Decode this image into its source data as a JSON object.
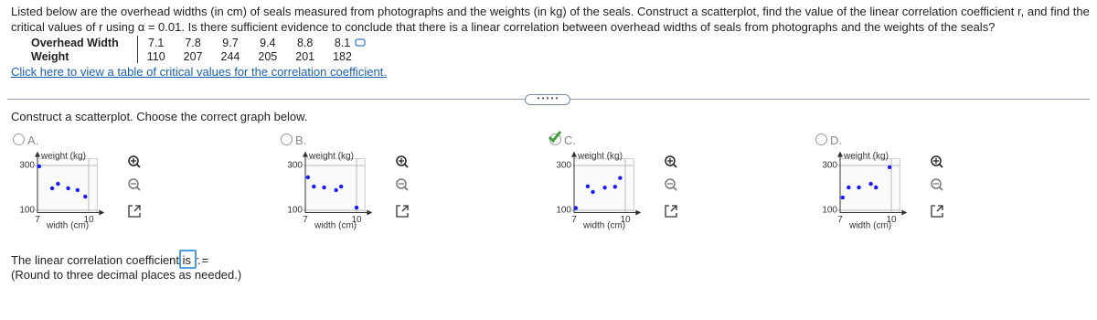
{
  "question": "Listed below are the overhead widths (in cm) of seals measured from photographs and the weights (in kg) of the seals. Construct a scatterplot, find the value of the linear correlation coefficient r, and find the critical values of r using α = 0.01. Is there sufficient evidence to conclude that there is a linear correlation between overhead widths of seals from photographs and the weights of the seals?",
  "table": {
    "rows": [
      [
        "Overhead Width",
        7.1,
        7.8,
        9.7,
        9.4,
        8.8,
        8.1
      ],
      [
        "Weight",
        110,
        207,
        244,
        205,
        201,
        182
      ]
    ]
  },
  "link": "Click here to view a table of critical values for the correlation coefficient.",
  "instruction": "Construct a scatterplot. Choose the correct graph below.",
  "options": [
    {
      "type": "scatter",
      "label": "A.",
      "selected": false,
      "y_label": "weight (kg)",
      "x_label": "width (cm)",
      "xlim": [
        7,
        10.5
      ],
      "ylim": [
        90,
        330
      ],
      "xticks": [
        7,
        10
      ],
      "yticks": [
        100,
        300
      ],
      "color": "#1a1aff",
      "x": [
        7.1,
        7.86,
        8.2,
        8.8,
        9.35,
        9.8
      ],
      "y": [
        296,
        198,
        218,
        198,
        190,
        161
      ]
    },
    {
      "type": "scatter",
      "label": "B.",
      "selected": false,
      "y_label": "weight (kg)",
      "x_label": "width (cm)",
      "xlim": [
        7,
        10.5
      ],
      "ylim": [
        90,
        330
      ],
      "xticks": [
        7,
        10
      ],
      "yticks": [
        100,
        300
      ],
      "color": "#1a1aff",
      "x": [
        7.15,
        7.5,
        8.1,
        8.8,
        9.1,
        10
      ],
      "y": [
        247,
        206,
        202,
        190,
        206,
        112
      ]
    },
    {
      "type": "scatter",
      "label": "C.",
      "selected": true,
      "y_label": "weight (kg)",
      "x_label": "width (cm)",
      "xlim": [
        7,
        10.5
      ],
      "ylim": [
        90,
        330
      ],
      "xticks": [
        7,
        10
      ],
      "yticks": [
        100,
        300
      ],
      "color": "#1a1aff",
      "x": [
        7.1,
        7.8,
        9.7,
        9.4,
        8.8,
        8.1
      ],
      "y": [
        110,
        207,
        244,
        205,
        201,
        182
      ]
    },
    {
      "type": "scatter",
      "label": "D.",
      "selected": false,
      "y_label": "weight (kg)",
      "x_label": "width (cm)",
      "xlim": [
        7,
        10.5
      ],
      "ylim": [
        90,
        330
      ],
      "xticks": [
        7,
        10
      ],
      "yticks": [
        100,
        300
      ],
      "color": "#1a1aff",
      "x": [
        7.15,
        7.5,
        8.1,
        8.8,
        9.1,
        9.9
      ],
      "y": [
        157,
        202,
        202,
        218,
        202,
        292
      ]
    }
  ],
  "answer_prompt": "The linear correlation coefficient is r =",
  "answer_hint": "(Round to three decimal places as needed.)"
}
